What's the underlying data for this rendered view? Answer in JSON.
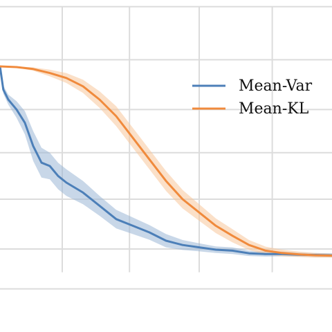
{
  "chart_data": {
    "type": "line",
    "xlim": [
      0,
      1
    ],
    "ylim": [
      0,
      1
    ],
    "grid": true,
    "grid_x": [
      0.1875,
      0.39,
      0.6,
      0.82
    ],
    "grid_y": [
      0.98,
      0.82,
      0.67,
      0.54,
      0.4,
      0.25,
      0.13
    ],
    "legend_position": "top-right",
    "series": [
      {
        "name": "Mean-Var",
        "color": "#4c7fb8",
        "band_color": "#9ab6d6",
        "points": [
          [
            0.0,
            0.8
          ],
          [
            0.01,
            0.73
          ],
          [
            0.025,
            0.7
          ],
          [
            0.05,
            0.67
          ],
          [
            0.075,
            0.63
          ],
          [
            0.1,
            0.56
          ],
          [
            0.125,
            0.51
          ],
          [
            0.15,
            0.5
          ],
          [
            0.175,
            0.47
          ],
          [
            0.2,
            0.45
          ],
          [
            0.25,
            0.42
          ],
          [
            0.3,
            0.38
          ],
          [
            0.35,
            0.34
          ],
          [
            0.4,
            0.32
          ],
          [
            0.45,
            0.3
          ],
          [
            0.5,
            0.275
          ],
          [
            0.55,
            0.262
          ],
          [
            0.6,
            0.255
          ],
          [
            0.65,
            0.248
          ],
          [
            0.7,
            0.245
          ],
          [
            0.75,
            0.237
          ],
          [
            0.8,
            0.235
          ],
          [
            0.85,
            0.235
          ],
          [
            0.9,
            0.233
          ],
          [
            0.95,
            0.232
          ],
          [
            1.0,
            0.231
          ]
        ],
        "band": [
          0.0,
          0.012,
          0.015,
          0.025,
          0.035,
          0.045,
          0.045,
          0.04,
          0.04,
          0.04,
          0.035,
          0.03,
          0.028,
          0.025,
          0.022,
          0.02,
          0.015,
          0.012,
          0.01,
          0.01,
          0.008,
          0.008,
          0.007,
          0.006,
          0.006,
          0.006
        ]
      },
      {
        "name": "Mean-KL",
        "color": "#f08a3c",
        "band_color": "#f8c79a",
        "points": [
          [
            0.0,
            0.8
          ],
          [
            0.05,
            0.798
          ],
          [
            0.1,
            0.792
          ],
          [
            0.15,
            0.78
          ],
          [
            0.2,
            0.765
          ],
          [
            0.25,
            0.74
          ],
          [
            0.3,
            0.7
          ],
          [
            0.35,
            0.65
          ],
          [
            0.4,
            0.585
          ],
          [
            0.45,
            0.52
          ],
          [
            0.5,
            0.455
          ],
          [
            0.55,
            0.4
          ],
          [
            0.6,
            0.36
          ],
          [
            0.65,
            0.32
          ],
          [
            0.7,
            0.29
          ],
          [
            0.75,
            0.262
          ],
          [
            0.8,
            0.245
          ],
          [
            0.85,
            0.238
          ],
          [
            0.9,
            0.234
          ],
          [
            0.95,
            0.231
          ],
          [
            1.0,
            0.23
          ]
        ],
        "band": [
          0.0,
          0.002,
          0.005,
          0.01,
          0.015,
          0.02,
          0.025,
          0.03,
          0.03,
          0.03,
          0.03,
          0.028,
          0.025,
          0.022,
          0.02,
          0.015,
          0.012,
          0.01,
          0.008,
          0.007,
          0.006
        ]
      }
    ]
  }
}
